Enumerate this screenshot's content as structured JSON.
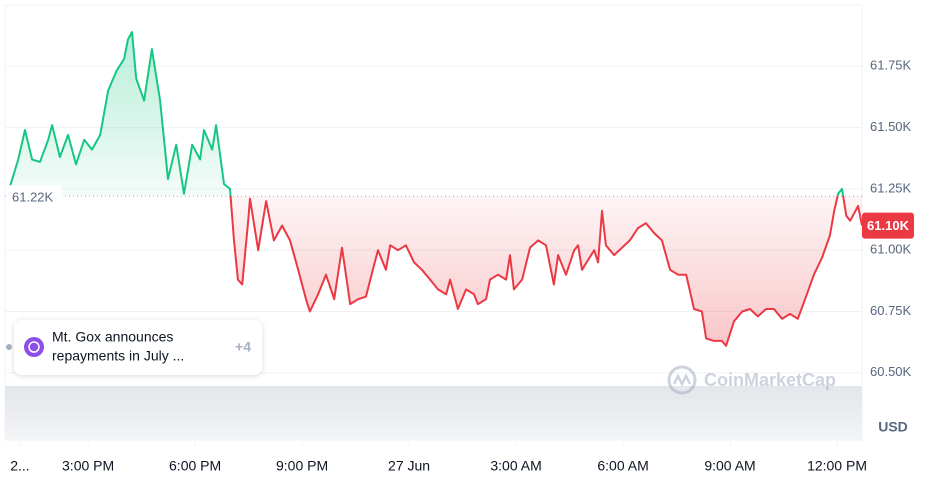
{
  "chart_data": {
    "type": "line",
    "series": [
      {
        "color": "#16c784",
        "color_below": "#ea3943",
        "x": [
          0.81,
          1.04,
          1.23,
          1.43,
          1.65,
          1.88,
          1.99,
          2.21,
          2.44,
          2.66,
          2.89,
          3.11,
          3.34,
          3.56,
          3.79,
          4.01,
          4.12,
          4.23,
          4.35,
          4.57,
          4.79,
          5.02,
          5.24,
          5.47,
          5.69,
          5.92,
          6.14,
          6.25,
          6.48,
          6.59,
          6.81,
          6.98,
          7.09,
          7.2,
          7.32,
          7.49,
          7.54,
          7.77,
          7.99,
          8.21,
          8.44,
          8.66,
          8.89,
          9.11,
          9.22,
          9.45,
          9.67,
          9.9,
          10.12,
          10.35,
          10.57,
          10.79,
          11.02,
          11.13,
          11.35,
          11.47,
          11.69,
          11.91,
          12.14,
          12.36,
          12.59,
          12.81,
          13.04,
          13.15,
          13.37,
          13.6,
          13.82,
          13.93,
          14.16,
          14.27,
          14.49,
          14.72,
          14.83,
          14.94,
          15.17,
          15.39,
          15.62,
          15.84,
          16.06,
          16.18,
          16.4,
          16.63,
          16.74,
          16.85,
          17.19,
          17.3,
          17.41,
          17.52,
          17.75,
          17.97,
          18.19,
          18.42,
          18.64,
          18.87,
          19.09,
          19.32,
          19.54,
          19.77,
          19.99,
          20.21,
          20.33,
          20.55,
          20.77,
          20.89,
          21.11,
          21.34,
          21.56,
          21.78,
          22.01,
          22.23,
          22.46,
          22.68,
          22.9,
          23.13,
          23.35,
          23.58,
          23.8,
          23.92,
          24.03,
          24.14,
          24.26,
          24.37,
          24.59,
          24.7
        ],
        "values": [
          61.26,
          61.37,
          61.49,
          61.37,
          61.36,
          61.45,
          61.51,
          61.38,
          61.47,
          61.35,
          61.45,
          61.41,
          61.47,
          61.65,
          61.73,
          61.78,
          61.86,
          61.89,
          61.7,
          61.61,
          61.82,
          61.61,
          61.29,
          61.43,
          61.23,
          61.43,
          61.37,
          61.49,
          61.41,
          61.51,
          61.27,
          61.25,
          61.04,
          60.88,
          60.86,
          61.12,
          61.21,
          61.0,
          61.2,
          61.04,
          61.1,
          61.04,
          60.92,
          60.8,
          60.75,
          60.82,
          60.9,
          60.8,
          61.01,
          60.78,
          60.8,
          60.81,
          60.94,
          61.0,
          60.92,
          61.02,
          61.0,
          61.02,
          60.95,
          60.92,
          60.88,
          60.84,
          60.82,
          60.88,
          60.76,
          60.84,
          60.82,
          60.78,
          60.8,
          60.88,
          60.9,
          60.88,
          60.98,
          60.84,
          60.88,
          61.01,
          61.04,
          61.02,
          60.86,
          60.98,
          60.9,
          61.0,
          61.02,
          60.92,
          61.0,
          60.95,
          61.16,
          61.02,
          60.98,
          61.01,
          61.04,
          61.09,
          61.11,
          61.07,
          61.04,
          60.92,
          60.9,
          60.9,
          60.76,
          60.75,
          60.64,
          60.63,
          60.63,
          60.61,
          60.71,
          60.75,
          60.76,
          60.73,
          60.76,
          60.76,
          60.72,
          60.74,
          60.72,
          60.81,
          60.9,
          60.97,
          61.06,
          61.16,
          61.23,
          61.25,
          61.14,
          61.12,
          61.18,
          61.1
        ]
      }
    ],
    "baseline": {
      "value": 61.22,
      "label": "61.22K"
    },
    "last_price": {
      "value": 61.1,
      "label": "61.10K"
    },
    "xlim": [
      0.67,
      24.7
    ],
    "xticks": [
      {
        "value": 1.09,
        "label": "2..."
      },
      {
        "value": 3,
        "label": "3:00 PM"
      },
      {
        "value": 6,
        "label": "6:00 PM"
      },
      {
        "value": 9,
        "label": "9:00 PM"
      },
      {
        "value": 12,
        "label": "27 Jun"
      },
      {
        "value": 15,
        "label": "3:00 AM"
      },
      {
        "value": 18,
        "label": "6:00 AM"
      },
      {
        "value": 21,
        "label": "9:00 AM"
      },
      {
        "value": 24,
        "label": "12:00 PM"
      }
    ],
    "ylim": [
      60.45,
      62.0
    ],
    "yticks": [
      {
        "value": 60.5,
        "label": "60.50K"
      },
      {
        "value": 60.75,
        "label": "60.75K"
      },
      {
        "value": 61.0,
        "label": "61.00K"
      },
      {
        "value": 61.25,
        "label": "61.25K"
      },
      {
        "value": 61.5,
        "label": "61.50K"
      },
      {
        "value": 61.75,
        "label": "61.75K"
      }
    ],
    "y_unit": "USD",
    "grid": true,
    "annotation": {
      "lines": [
        "Mt. Gox announces",
        "repayments in July ..."
      ],
      "more": "+4"
    },
    "watermark": "CoinMarketCap"
  }
}
